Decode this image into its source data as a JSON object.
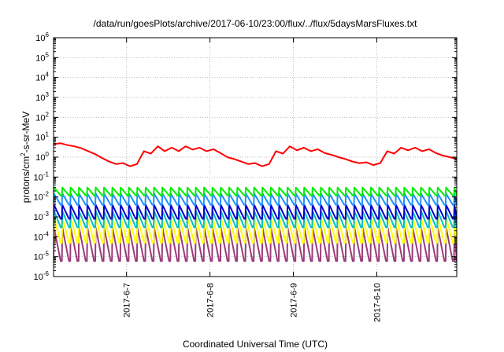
{
  "chart_data": {
    "type": "line",
    "title": "/data/run/goesPlots/archive/2017-06-10/23:00/flux/../flux/5daysMarsFluxes.txt",
    "xlabel": "Coordinated Universal Time (UTC)",
    "ylabel": "protons/cm2-s-sr-MeV",
    "yscale": "log",
    "ylim": [
      1e-06,
      1000000.0
    ],
    "xlim": [
      "2017-06-06T03:00",
      "2017-06-10T23:00"
    ],
    "y_ticks": [
      {
        "base": "10",
        "exp": "-6"
      },
      {
        "base": "10",
        "exp": "-5"
      },
      {
        "base": "10",
        "exp": "-4"
      },
      {
        "base": "10",
        "exp": "-3"
      },
      {
        "base": "10",
        "exp": "-2"
      },
      {
        "base": "10",
        "exp": "-1"
      },
      {
        "base": "10",
        "exp": "0"
      },
      {
        "base": "10",
        "exp": "1"
      },
      {
        "base": "10",
        "exp": "2"
      },
      {
        "base": "10",
        "exp": "3"
      },
      {
        "base": "10",
        "exp": "4"
      },
      {
        "base": "10",
        "exp": "5"
      },
      {
        "base": "10",
        "exp": "6"
      }
    ],
    "x_ticks": [
      "2017-6-7",
      "2017-6-8",
      "2017-6-9",
      "2017-6-10"
    ],
    "grid": true,
    "legend": "none",
    "series": [
      {
        "color": "#ff0000",
        "x": [
          "2017-06-06T03:00",
          "2017-06-06T05:00",
          "2017-06-06T07:00",
          "2017-06-06T09:00",
          "2017-06-06T11:00",
          "2017-06-06T13:00",
          "2017-06-06T15:00",
          "2017-06-06T17:00",
          "2017-06-06T19:00",
          "2017-06-06T21:00",
          "2017-06-06T23:00",
          "2017-06-07T01:00",
          "2017-06-07T03:00",
          "2017-06-07T05:00",
          "2017-06-07T07:00",
          "2017-06-07T09:00",
          "2017-06-07T11:00",
          "2017-06-07T13:00",
          "2017-06-07T15:00",
          "2017-06-07T17:00",
          "2017-06-07T19:00",
          "2017-06-07T21:00",
          "2017-06-07T23:00",
          "2017-06-08T01:00",
          "2017-06-08T03:00",
          "2017-06-08T05:00",
          "2017-06-08T07:00",
          "2017-06-08T09:00",
          "2017-06-08T11:00",
          "2017-06-08T13:00",
          "2017-06-08T15:00",
          "2017-06-08T17:00",
          "2017-06-08T19:00",
          "2017-06-08T21:00",
          "2017-06-08T23:00",
          "2017-06-09T01:00",
          "2017-06-09T03:00",
          "2017-06-09T05:00",
          "2017-06-09T07:00",
          "2017-06-09T09:00",
          "2017-06-09T11:00",
          "2017-06-09T13:00",
          "2017-06-09T15:00",
          "2017-06-09T17:00",
          "2017-06-09T19:00",
          "2017-06-09T21:00",
          "2017-06-09T23:00",
          "2017-06-10T01:00",
          "2017-06-10T03:00",
          "2017-06-10T05:00",
          "2017-06-10T07:00",
          "2017-06-10T09:00",
          "2017-06-10T11:00",
          "2017-06-10T13:00",
          "2017-06-10T15:00",
          "2017-06-10T17:00",
          "2017-06-10T19:00",
          "2017-06-10T21:00",
          "2017-06-10T23:00"
        ],
        "y": [
          4.5,
          5,
          4,
          3.5,
          2.8,
          2,
          1.4,
          0.9,
          0.6,
          0.45,
          0.5,
          0.35,
          0.45,
          2,
          1.5,
          3.5,
          2,
          3,
          2,
          3.5,
          2.4,
          3,
          2,
          2.5,
          1.6,
          1,
          0.8,
          0.6,
          0.45,
          0.5,
          0.35,
          0.45,
          2,
          1.5,
          3.5,
          2.2,
          3,
          2,
          2.5,
          1.6,
          1.3,
          1,
          0.8,
          0.6,
          0.5,
          0.55,
          0.4,
          0.5,
          2,
          1.5,
          3,
          2.2,
          3,
          2,
          2.5,
          1.6,
          1.2,
          1,
          0.8
        ]
      },
      {
        "color": "#00ee00",
        "pattern": {
          "hi": 0.03,
          "lo": 0.012,
          "period_hours": 2.4
        }
      },
      {
        "color": "#1e90ff",
        "pattern": {
          "hi": 0.015,
          "lo": 0.004,
          "period_hours": 2.4
        }
      },
      {
        "color": "#0000cc",
        "pattern": {
          "hi": 0.004,
          "lo": 0.0008,
          "period_hours": 2.4
        }
      },
      {
        "color": "#00bfbf",
        "pattern": {
          "hi": 0.002,
          "lo": 0.0003,
          "period_hours": 2.4
        }
      },
      {
        "color": "#ffff00",
        "pattern": {
          "hi": 0.001,
          "lo": 5e-05,
          "period_hours": 2.4
        }
      },
      {
        "color": "#9b3b7a",
        "pattern": {
          "hi": 0.0003,
          "lo": 6e-06,
          "period_hours": 2.4
        }
      }
    ]
  }
}
